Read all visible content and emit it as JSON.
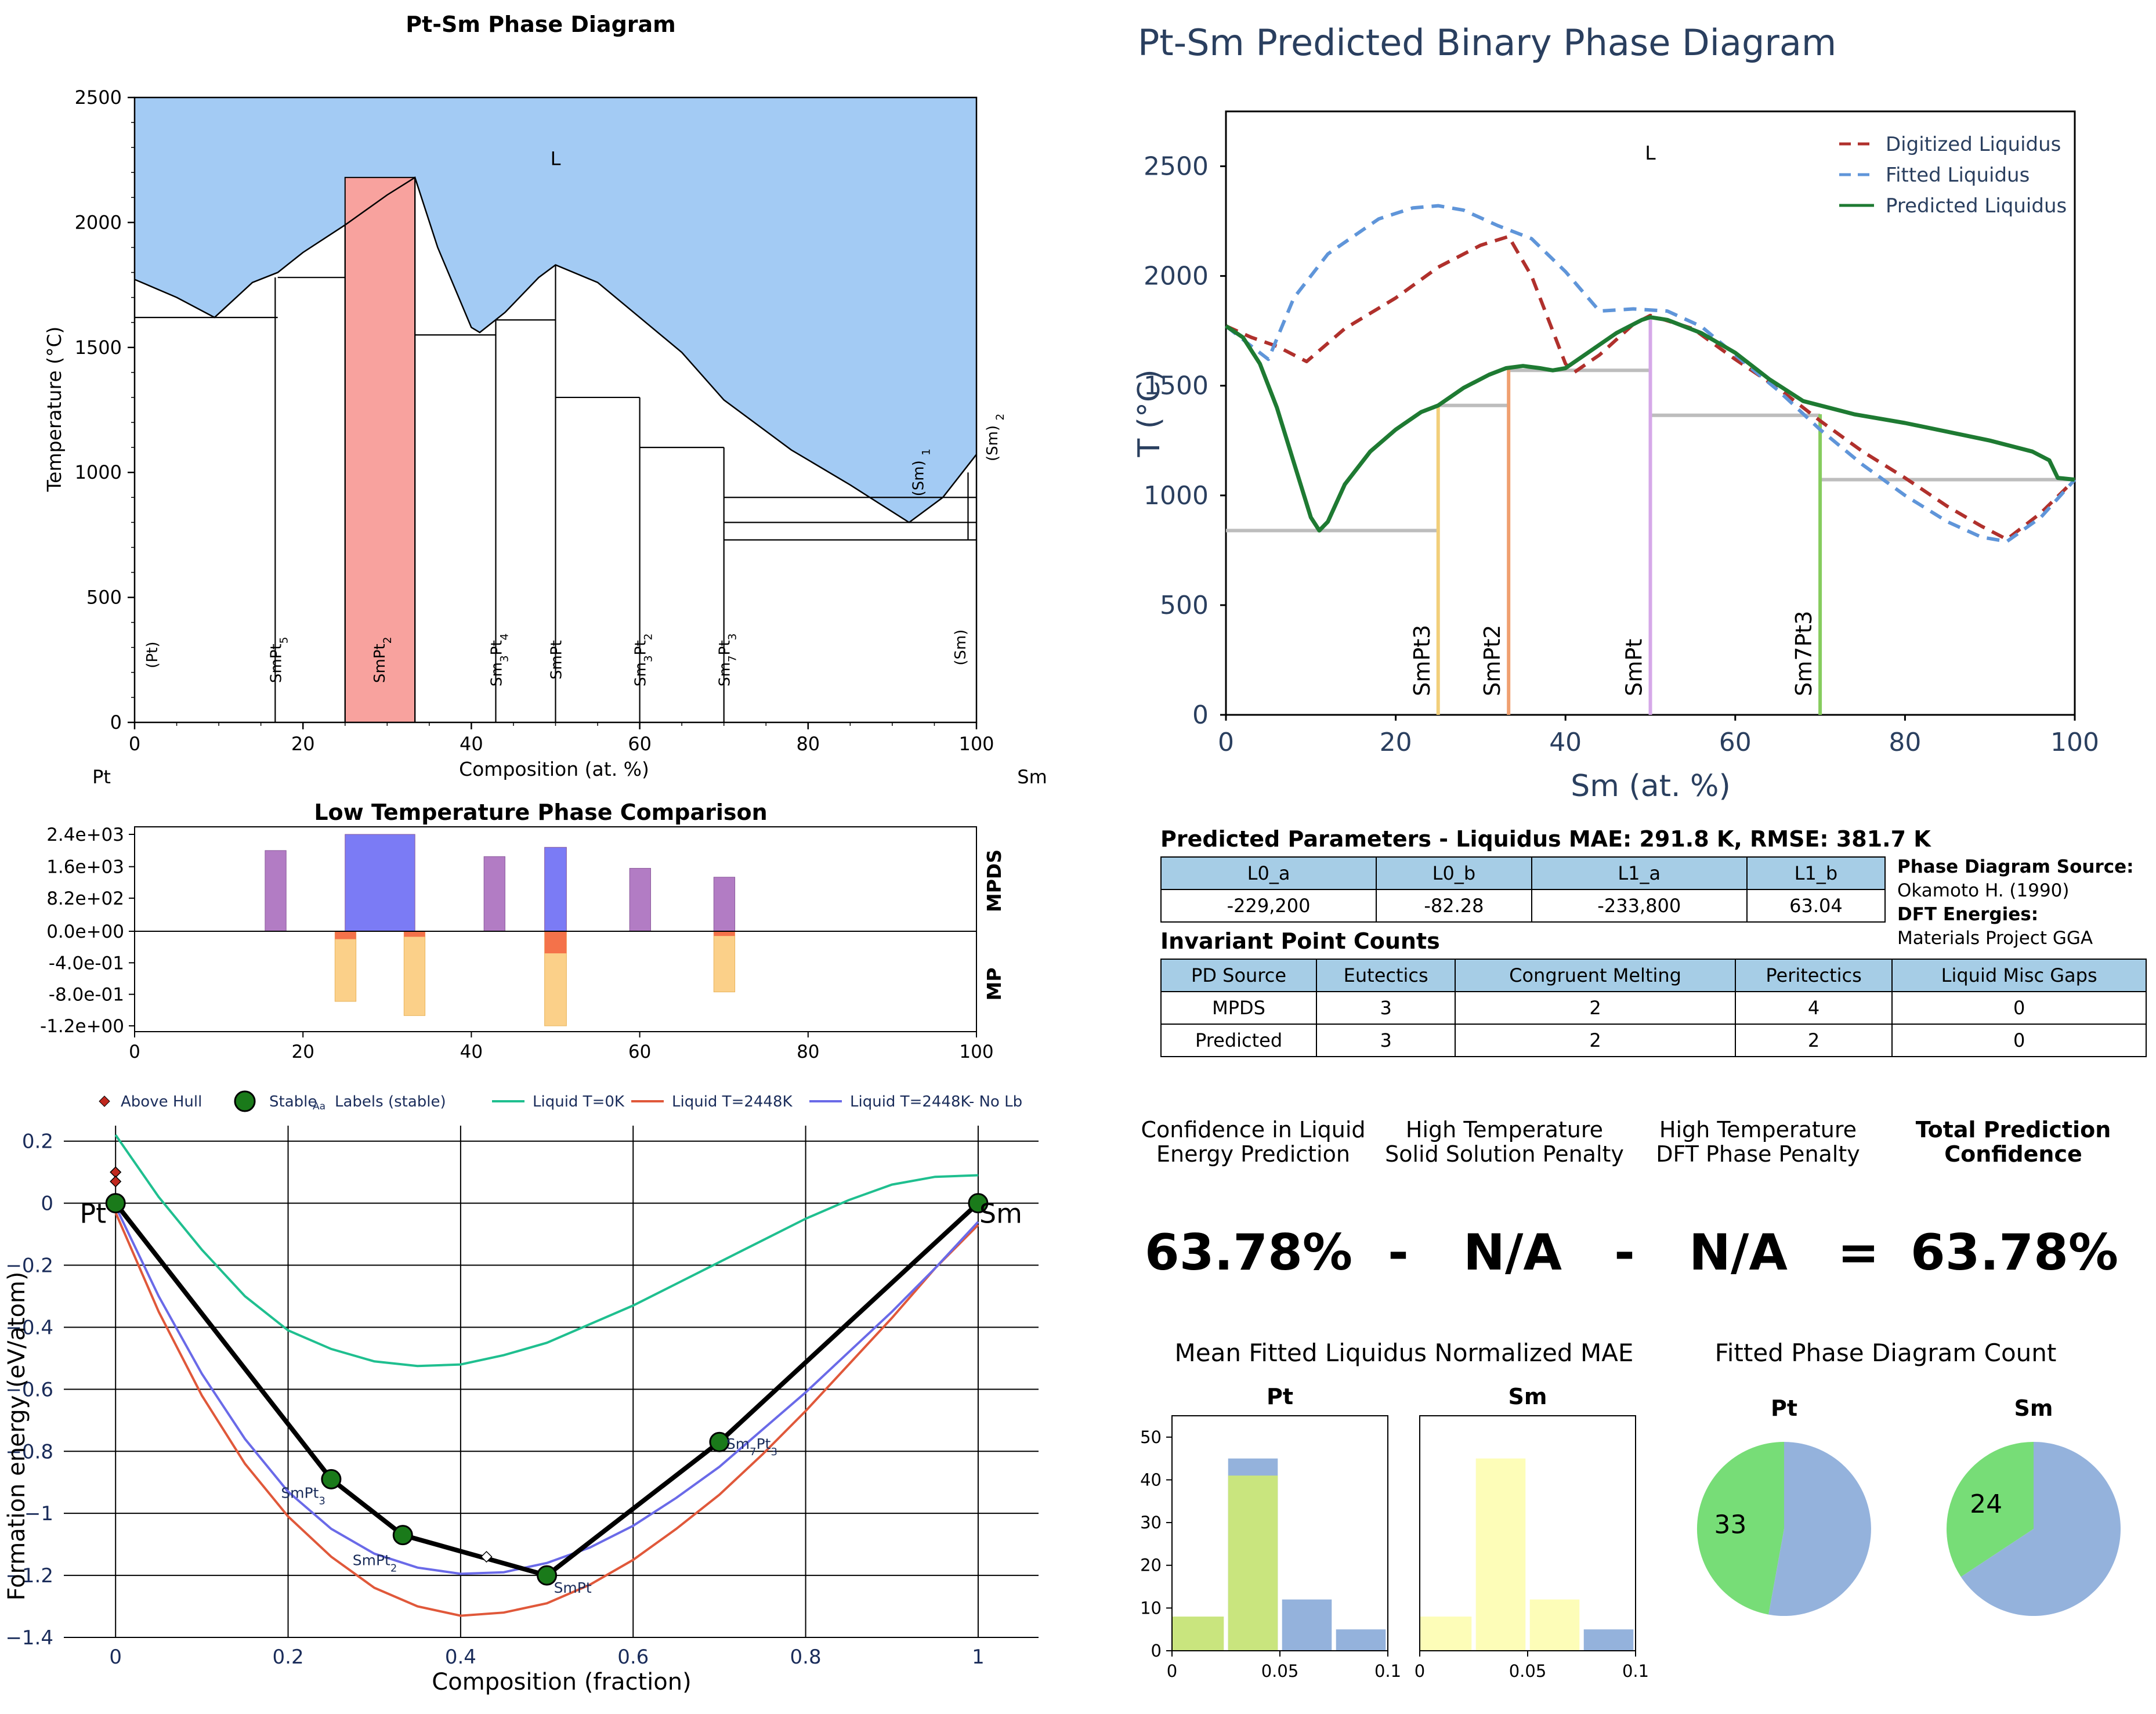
{
  "chart_data": [
    {
      "type": "phase-diagram",
      "title": "Pt-Sm Phase Diagram",
      "xlabel": "Composition (at. %)",
      "ylabel": "Temperature (°C)",
      "xlim": [
        0,
        100
      ],
      "ylim": [
        0,
        2500
      ],
      "xticks": [
        0,
        20,
        40,
        60,
        80,
        100
      ],
      "yticks": [
        0,
        500,
        1000,
        1500,
        2000,
        2500
      ],
      "left_element": "Pt",
      "right_element": "Sm",
      "liquid_label": "L",
      "liquidus": [
        [
          0,
          1772
        ],
        [
          5,
          1700
        ],
        [
          9.5,
          1620
        ],
        [
          14,
          1760
        ],
        [
          17,
          1800
        ],
        [
          20,
          1880
        ],
        [
          25,
          1990
        ],
        [
          30,
          2110
        ],
        [
          33.3,
          2180
        ],
        [
          36,
          1900
        ],
        [
          40,
          1580
        ],
        [
          41,
          1560
        ],
        [
          44,
          1640
        ],
        [
          48,
          1780
        ],
        [
          50,
          1830
        ],
        [
          55,
          1760
        ],
        [
          60,
          1620
        ],
        [
          65,
          1480
        ],
        [
          70,
          1290
        ],
        [
          78,
          1090
        ],
        [
          85,
          950
        ],
        [
          92,
          800
        ],
        [
          96,
          900
        ],
        [
          100,
          1072
        ]
      ],
      "phases": [
        {
          "label": "(Pt)",
          "x": 2
        },
        {
          "label": "SmPt5",
          "x": 16.7
        },
        {
          "label": "SmPt2",
          "x": 29,
          "region": [
            25,
            33.3
          ],
          "color": "#f8a29e"
        },
        {
          "label": "Sm3Pt4",
          "x": 42.9
        },
        {
          "label": "SmPt",
          "x": 50
        },
        {
          "label": "Sm3Pt2",
          "x": 60
        },
        {
          "label": "Sm7Pt3",
          "x": 70
        },
        {
          "label": "(Sm)",
          "x": 98
        },
        {
          "label": "(Sm) 1",
          "x": 93
        },
        {
          "label": "(Sm) 2",
          "x": 102
        }
      ],
      "horizontal_lines": [
        {
          "y": 1620,
          "x1": 0,
          "x2": 17
        },
        {
          "y": 1780,
          "x1": 17,
          "x2": 25
        },
        {
          "y": 1550,
          "x1": 33.3,
          "x2": 42.9
        },
        {
          "y": 1610,
          "x1": 42.9,
          "x2": 50
        },
        {
          "y": 1300,
          "x1": 50,
          "x2": 60
        },
        {
          "y": 1100,
          "x1": 60,
          "x2": 70
        },
        {
          "y": 800,
          "x1": 70,
          "x2": 100
        },
        {
          "y": 730,
          "x1": 70,
          "x2": 100
        },
        {
          "y": 900,
          "x1": 70,
          "x2": 100
        }
      ]
    },
    {
      "type": "bar",
      "title": "Low Temperature Phase Comparison",
      "xlim": [
        0,
        100
      ],
      "xticks": [
        0,
        20,
        40,
        60,
        80,
        100
      ],
      "ytick_labels": [
        "2.4e+03",
        "1.6e+03",
        "8.2e+02",
        "0.0e+00",
        "-4.0e-01",
        "-8.0e-01",
        "-1.2e+00"
      ],
      "top_label": "MPDS",
      "bottom_label": "MP",
      "mpds_bars": [
        {
          "x1": 15.5,
          "x2": 18,
          "value": 2000,
          "color": "#b27cc4"
        },
        {
          "x1": 25,
          "x2": 33.3,
          "value": 2400,
          "color": "#7b7bf5"
        },
        {
          "x1": 41.5,
          "x2": 44,
          "value": 1850,
          "color": "#b27cc4"
        },
        {
          "x1": 48.7,
          "x2": 51.3,
          "value": 2080,
          "color": "#7b7bf5"
        },
        {
          "x1": 58.8,
          "x2": 61.3,
          "value": 1560,
          "color": "#b27cc4"
        },
        {
          "x1": 68.8,
          "x2": 71.3,
          "value": 1340,
          "color": "#b27cc4"
        }
      ],
      "mp_bars": [
        {
          "x1": 23.8,
          "x2": 26.3,
          "value": -0.89,
          "head": -0.1
        },
        {
          "x1": 32,
          "x2": 34.5,
          "value": -1.07,
          "head": -0.07
        },
        {
          "x1": 48.7,
          "x2": 51.3,
          "value": -1.2,
          "head": -0.28
        },
        {
          "x1": 68.8,
          "x2": 71.3,
          "value": -0.77,
          "head": -0.06
        }
      ]
    },
    {
      "type": "line",
      "xlabel": "Composition (fraction)",
      "ylabel": "Formation energy (eV/atom)",
      "xlim": [
        -0.06,
        1.07
      ],
      "ylim": [
        -1.4,
        0.25
      ],
      "xticks": [
        0,
        0.2,
        0.4,
        0.6,
        0.8,
        1
      ],
      "xtick_labels": [
        "0",
        "0.2",
        "0.4",
        "0.6",
        "0.8",
        "1"
      ],
      "yticks": [
        0.2,
        0,
        -0.2,
        -0.4,
        -0.6,
        -0.8,
        -1,
        -1.2,
        -1.4
      ],
      "ytick_labels": [
        "0.2",
        "0",
        "−0.2",
        "−0.4",
        "−0.6",
        "−0.8",
        "−1",
        "−1.2",
        "−1.4"
      ],
      "legend": [
        "Above Hull",
        "Stable",
        "Labels (stable)",
        "Liquid T=0K",
        "Liquid T=2448K",
        "Liquid T=2448K- No Lb"
      ],
      "legend_aa": "Aa",
      "end_labels": [
        "Pt",
        "Sm"
      ],
      "hull": [
        [
          0,
          0
        ],
        [
          0.25,
          -0.89
        ],
        [
          0.333,
          -1.07
        ],
        [
          0.5,
          -1.2
        ],
        [
          0.7,
          -0.77
        ],
        [
          1,
          0
        ]
      ],
      "stable_labels": [
        {
          "x": 0.25,
          "y": -0.89,
          "text": "SmPt3"
        },
        {
          "x": 0.333,
          "y": -1.07,
          "text": "SmPt2"
        },
        {
          "x": 0.5,
          "y": -1.2,
          "text": "SmPt"
        },
        {
          "x": 0.7,
          "y": -0.77,
          "text": "Sm7Pt3"
        }
      ],
      "above_hull": [
        [
          0,
          0.1
        ],
        [
          0,
          0.07
        ],
        [
          0.43,
          -1.14
        ]
      ],
      "series": [
        {
          "name": "Liquid T=0K",
          "color": "#1fbf8f",
          "x": [
            0,
            0.05,
            0.1,
            0.15,
            0.2,
            0.25,
            0.3,
            0.35,
            0.4,
            0.45,
            0.5,
            0.55,
            0.6,
            0.65,
            0.7,
            0.75,
            0.8,
            0.85,
            0.9,
            0.95,
            1
          ],
          "y": [
            0.22,
            0.02,
            -0.15,
            -0.3,
            -0.41,
            -0.47,
            -0.51,
            -0.525,
            -0.52,
            -0.49,
            -0.45,
            -0.39,
            -0.33,
            -0.26,
            -0.19,
            -0.12,
            -0.05,
            0.01,
            0.06,
            0.085,
            0.09
          ]
        },
        {
          "name": "Liquid T=2448K",
          "color": "#e0583a",
          "x": [
            0,
            0.05,
            0.1,
            0.15,
            0.2,
            0.25,
            0.3,
            0.35,
            0.4,
            0.45,
            0.5,
            0.55,
            0.6,
            0.65,
            0.7,
            0.75,
            0.8,
            0.85,
            0.9,
            0.95,
            1
          ],
          "y": [
            -0.03,
            -0.35,
            -0.62,
            -0.84,
            -1.01,
            -1.14,
            -1.24,
            -1.3,
            -1.33,
            -1.32,
            -1.29,
            -1.23,
            -1.15,
            -1.05,
            -0.94,
            -0.81,
            -0.67,
            -0.52,
            -0.37,
            -0.21,
            -0.07
          ]
        },
        {
          "name": "Liquid T=2448K- No Lb",
          "color": "#6a6ae8",
          "x": [
            0,
            0.05,
            0.1,
            0.15,
            0.2,
            0.25,
            0.3,
            0.35,
            0.4,
            0.45,
            0.5,
            0.55,
            0.6,
            0.65,
            0.7,
            0.75,
            0.8,
            0.85,
            0.9,
            0.95,
            1
          ],
          "y": [
            -0.01,
            -0.3,
            -0.55,
            -0.76,
            -0.93,
            -1.05,
            -1.13,
            -1.175,
            -1.195,
            -1.19,
            -1.16,
            -1.11,
            -1.04,
            -0.95,
            -0.85,
            -0.73,
            -0.61,
            -0.48,
            -0.35,
            -0.21,
            -0.06
          ]
        }
      ]
    },
    {
      "type": "line",
      "title": "Pt-Sm Predicted Binary Phase Diagram",
      "xlabel": "Sm (at. %)",
      "ylabel": "T (°C)",
      "xlim": [
        0,
        100
      ],
      "ylim": [
        0,
        2750
      ],
      "xticks": [
        0,
        20,
        40,
        60,
        80,
        100
      ],
      "yticks": [
        0,
        500,
        1000,
        1500,
        2000,
        2500
      ],
      "liquid_label": "L",
      "series": [
        {
          "name": "Digitized Liquidus",
          "color": "#b0302c",
          "dash": "dashed",
          "x": [
            0,
            3,
            6,
            9.5,
            14,
            20,
            25,
            30,
            33.3,
            36,
            40,
            41,
            44,
            48,
            50,
            55,
            60,
            65,
            70,
            75,
            80,
            85,
            89,
            92,
            96,
            100
          ],
          "y": [
            1772,
            1720,
            1680,
            1610,
            1760,
            1900,
            2040,
            2140,
            2180,
            2000,
            1600,
            1560,
            1640,
            1780,
            1820,
            1760,
            1620,
            1490,
            1340,
            1200,
            1080,
            950,
            860,
            800,
            920,
            1072
          ]
        },
        {
          "name": "Fitted Liquidus",
          "color": "#5f95d9",
          "dash": "dashed",
          "x": [
            0,
            3,
            5,
            8,
            12,
            18,
            22,
            25,
            28,
            32,
            36,
            40,
            44,
            48,
            52,
            56,
            60,
            65,
            70,
            75,
            80,
            85,
            89,
            92,
            96,
            100
          ],
          "y": [
            1772,
            1680,
            1620,
            1900,
            2100,
            2260,
            2310,
            2320,
            2300,
            2230,
            2170,
            2020,
            1840,
            1850,
            1840,
            1770,
            1640,
            1480,
            1300,
            1140,
            1000,
            880,
            810,
            790,
            900,
            1072
          ]
        },
        {
          "name": "Predicted Liquidus",
          "color": "#1e7a32",
          "dash": "solid",
          "x": [
            0,
            2,
            4,
            6,
            8,
            10,
            11,
            12,
            14,
            17,
            20,
            23,
            25,
            28,
            31,
            33,
            35,
            37,
            38.5,
            40,
            43,
            46,
            49,
            50,
            52,
            56,
            60,
            64,
            68,
            72,
            74,
            80,
            85,
            90,
            95,
            97,
            98,
            100
          ],
          "y": [
            1772,
            1720,
            1600,
            1400,
            1150,
            900,
            840,
            880,
            1050,
            1200,
            1300,
            1380,
            1410,
            1490,
            1550,
            1580,
            1590,
            1580,
            1570,
            1580,
            1660,
            1740,
            1800,
            1812,
            1800,
            1740,
            1650,
            1530,
            1430,
            1390,
            1370,
            1330,
            1290,
            1250,
            1200,
            1160,
            1080,
            1072
          ]
        }
      ],
      "vertical_lines": [
        {
          "label": "SmPt3",
          "x": 25,
          "y": 1410,
          "color": "#f2cf7a"
        },
        {
          "label": "SmPt2",
          "x": 33.3,
          "y": 1580,
          "color": "#f0a070"
        },
        {
          "label": "SmPt",
          "x": 50,
          "y": 1812,
          "color": "#d6a8e8"
        },
        {
          "label": "Sm7Pt3",
          "x": 70,
          "y": 1370,
          "color": "#86cc5e"
        }
      ],
      "horizontal_lines": [
        {
          "y": 840,
          "x1": 0,
          "x2": 25
        },
        {
          "y": 1410,
          "x1": 25,
          "x2": 33.3
        },
        {
          "y": 1570,
          "x1": 33.3,
          "x2": 50
        },
        {
          "y": 1365,
          "x1": 50,
          "x2": 70
        },
        {
          "y": 1072,
          "x1": 70,
          "x2": 100
        }
      ]
    },
    {
      "type": "bar",
      "title": "Mean Fitted Liquidus Normalized MAE",
      "subcharts": [
        {
          "title": "Pt",
          "xlim": [
            0,
            0.1
          ],
          "ylim": [
            0,
            55
          ],
          "yticks": [
            0,
            10,
            20,
            30,
            40,
            50
          ],
          "xticks": [
            0,
            0.05,
            0.1
          ],
          "xtick_labels": [
            "0",
            "0.05",
            "0.1"
          ],
          "bars": [
            {
              "x1": 0,
              "x2": 0.024,
              "value": 8,
              "color": "#c9e57e"
            },
            {
              "x1": 0.026,
              "x2": 0.049,
              "value": 41,
              "color": "#c9e57e",
              "top": 45,
              "top_color": "#94b2dc"
            },
            {
              "x1": 0.051,
              "x2": 0.074,
              "value": 12,
              "color": "#94b2dc"
            },
            {
              "x1": 0.076,
              "x2": 0.099,
              "value": 5,
              "color": "#94b2dc"
            }
          ]
        },
        {
          "title": "Sm",
          "xlim": [
            0,
            0.1
          ],
          "ylim": [
            0,
            55
          ],
          "xticks": [
            0,
            0.05,
            0.1
          ],
          "xtick_labels": [
            "0",
            "0.05",
            "0.1"
          ],
          "bars": [
            {
              "x1": 0,
              "x2": 0.024,
              "value": 8,
              "color": "#fdfdb8"
            },
            {
              "x1": 0.026,
              "x2": 0.049,
              "value": 45,
              "color": "#fdfdb8"
            },
            {
              "x1": 0.051,
              "x2": 0.074,
              "value": 12,
              "color": "#fdfdb8"
            },
            {
              "x1": 0.076,
              "x2": 0.099,
              "value": 5,
              "color": "#94b2dc"
            }
          ]
        }
      ]
    },
    {
      "type": "pie",
      "title": "Fitted Phase Diagram Count",
      "pies": [
        {
          "title": "Pt",
          "slices": [
            {
              "value": 33,
              "color": "#77dd77",
              "label": "33"
            },
            {
              "value": 37,
              "color": "#94b2dc"
            }
          ]
        },
        {
          "title": "Sm",
          "slices": [
            {
              "value": 24,
              "color": "#77dd77",
              "label": "24"
            },
            {
              "value": 46,
              "color": "#94b2dc"
            }
          ]
        }
      ]
    }
  ],
  "parameters": {
    "title": "Predicted Parameters - Liquidus MAE: 291.8 K, RMSE: 381.7 K",
    "headers": [
      "L0_a",
      "L0_b",
      "L1_a",
      "L1_b"
    ],
    "values": [
      "-229,200",
      "-82.28",
      "-233,800",
      "63.04"
    ]
  },
  "source": {
    "pd_label": "Phase Diagram Source:",
    "pd_value": "Okamoto H. (1990)",
    "dft_label": "DFT Energies:",
    "dft_value": "Materials Project GGA"
  },
  "invariant": {
    "title": "Invariant Point Counts",
    "headers": [
      "PD Source",
      "Eutectics",
      "Congruent Melting",
      "Peritectics",
      "Liquid Misc Gaps"
    ],
    "rows": [
      [
        "MPDS",
        "3",
        "2",
        "4",
        "0"
      ],
      [
        "Predicted",
        "3",
        "2",
        "2",
        "0"
      ]
    ]
  },
  "confidence": {
    "h1a": "Confidence in Liquid",
    "h1b": "Energy Prediction",
    "h2a": "High Temperature",
    "h2b": "Solid Solution Penalty",
    "h3a": "High Temperature",
    "h3b": "DFT Phase Penalty",
    "h4a": "Total Prediction",
    "h4b": "Confidence",
    "v1": "63.78%",
    "op1": "-",
    "v2": "N/A",
    "op2": "-",
    "v3": "N/A",
    "op3": "=",
    "v4": "63.78%"
  }
}
